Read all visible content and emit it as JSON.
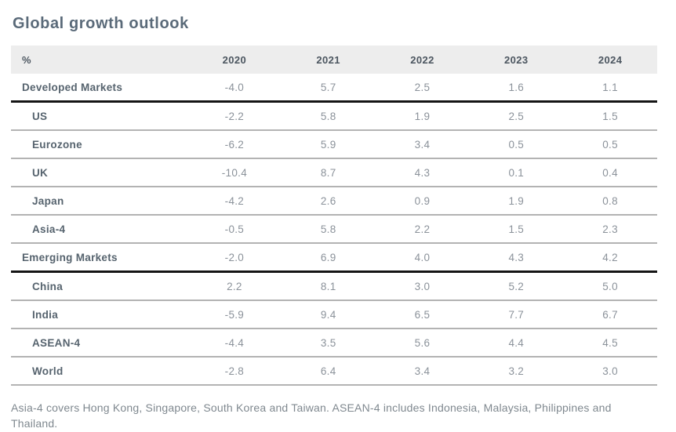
{
  "title": "Global growth outlook",
  "table": {
    "columns": [
      "%",
      "2020",
      "2021",
      "2022",
      "2023",
      "2024"
    ],
    "rows": [
      {
        "label": "Developed Markets",
        "indent": false,
        "divider": "thick",
        "values": [
          "-4.0",
          "5.7",
          "2.5",
          "1.6",
          "1.1"
        ]
      },
      {
        "label": "US",
        "indent": true,
        "divider": "gray",
        "values": [
          "-2.2",
          "5.8",
          "1.9",
          "2.5",
          "1.5"
        ]
      },
      {
        "label": "Eurozone",
        "indent": true,
        "divider": "gray",
        "values": [
          "-6.2",
          "5.9",
          "3.4",
          "0.5",
          "0.5"
        ]
      },
      {
        "label": "UK",
        "indent": true,
        "divider": "gray",
        "values": [
          "-10.4",
          "8.7",
          "4.3",
          "0.1",
          "0.4"
        ]
      },
      {
        "label": "Japan",
        "indent": true,
        "divider": "gray",
        "values": [
          "-4.2",
          "2.6",
          "0.9",
          "1.9",
          "0.8"
        ]
      },
      {
        "label": "Asia-4",
        "indent": true,
        "divider": "gray",
        "values": [
          "-0.5",
          "5.8",
          "2.2",
          "1.5",
          "2.3"
        ]
      },
      {
        "label": "Emerging Markets",
        "indent": false,
        "divider": "thick",
        "values": [
          "-2.0",
          "6.9",
          "4.0",
          "4.3",
          "4.2"
        ]
      },
      {
        "label": "China",
        "indent": true,
        "divider": "gray",
        "values": [
          "2.2",
          "8.1",
          "3.0",
          "5.2",
          "5.0"
        ]
      },
      {
        "label": "India",
        "indent": true,
        "divider": "gray",
        "values": [
          "-5.9",
          "9.4",
          "6.5",
          "7.7",
          "6.7"
        ]
      },
      {
        "label": "ASEAN-4",
        "indent": true,
        "divider": "gray",
        "values": [
          "-4.4",
          "3.5",
          "5.6",
          "4.4",
          "4.5"
        ]
      },
      {
        "label": "World",
        "indent": true,
        "divider": "gray",
        "values": [
          "-2.8",
          "6.4",
          "3.4",
          "3.2",
          "3.0"
        ]
      }
    ]
  },
  "footnote": "Asia-4 covers Hong Kong, Singapore, South Korea and Taiwan. ASEAN-4 includes Indonesia, Malaysia, Philippines and Thailand.",
  "colors": {
    "title_text": "#5a6a79",
    "header_bg": "#ededed",
    "header_text": "#4c5660",
    "label_text": "#56636e",
    "value_text": "#8b929a",
    "divider_gray": "#b3b3b3",
    "divider_black": "#141414",
    "footnote_text": "#7f888f"
  },
  "chart_data": {
    "type": "table",
    "title": "Global growth outlook",
    "unit": "%",
    "categories": [
      "2020",
      "2021",
      "2022",
      "2023",
      "2024"
    ],
    "series": [
      {
        "name": "Developed Markets",
        "values": [
          -4.0,
          5.7,
          2.5,
          1.6,
          1.1
        ]
      },
      {
        "name": "US",
        "values": [
          -2.2,
          5.8,
          1.9,
          2.5,
          1.5
        ]
      },
      {
        "name": "Eurozone",
        "values": [
          -6.2,
          5.9,
          3.4,
          0.5,
          0.5
        ]
      },
      {
        "name": "UK",
        "values": [
          -10.4,
          8.7,
          4.3,
          0.1,
          0.4
        ]
      },
      {
        "name": "Japan",
        "values": [
          -4.2,
          2.6,
          0.9,
          1.9,
          0.8
        ]
      },
      {
        "name": "Asia-4",
        "values": [
          -0.5,
          5.8,
          2.2,
          1.5,
          2.3
        ]
      },
      {
        "name": "Emerging Markets",
        "values": [
          -2.0,
          6.9,
          4.0,
          4.3,
          4.2
        ]
      },
      {
        "name": "China",
        "values": [
          2.2,
          8.1,
          3.0,
          5.2,
          5.0
        ]
      },
      {
        "name": "India",
        "values": [
          -5.9,
          9.4,
          6.5,
          7.7,
          6.7
        ]
      },
      {
        "name": "ASEAN-4",
        "values": [
          -4.4,
          3.5,
          5.6,
          4.4,
          4.5
        ]
      },
      {
        "name": "World",
        "values": [
          -2.8,
          6.4,
          3.4,
          3.2,
          3.0
        ]
      }
    ],
    "annotations": [
      "Asia-4 covers Hong Kong, Singapore, South Korea and Taiwan. ASEAN-4 includes Indonesia, Malaysia, Philippines and Thailand."
    ]
  }
}
